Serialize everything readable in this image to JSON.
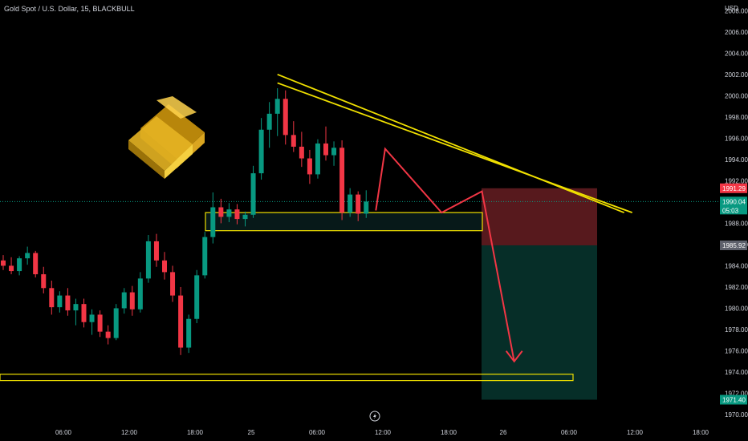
{
  "header": {
    "title": "Gold Spot / U.S. Dollar, 15, BLACKBULL"
  },
  "chart_data": {
    "type": "candlestick",
    "currency_label": "USD",
    "y_ticks": [
      "2008.00",
      "2006.00",
      "2004.00",
      "2002.00",
      "2000.00",
      "1998.00",
      "1996.00",
      "1994.00",
      "1992.00",
      "1988.00",
      "1986.00",
      "1984.00",
      "1982.00",
      "1980.00",
      "1978.00",
      "1976.00",
      "1974.00",
      "1972.00",
      "1970.00"
    ],
    "x_ticks": [
      "06:00",
      "12:00",
      "18:00",
      "25",
      "06:00",
      "12:00",
      "18:00",
      "26",
      "06:00",
      "12:00",
      "18:00"
    ],
    "price_labels": [
      {
        "value": "1991.29",
        "color": "#f23645"
      },
      {
        "value": "1990.04",
        "sub": "05:03",
        "color": "#089981"
      },
      {
        "value": "1985.92",
        "color": "#5d606b"
      },
      {
        "value": "1971.40",
        "color": "#089981"
      }
    ],
    "current_price": 1990.04,
    "trade": {
      "entry": 1985.92,
      "stop": 1991.29,
      "target": 1971.4
    },
    "zones": [
      {
        "low": 1987.3,
        "high": 1989.0
      },
      {
        "low": 1973.2,
        "high": 1973.8
      }
    ],
    "trendlines": [
      {
        "from": [
          34,
          2002.0
        ],
        "to": [
          73,
          1989.0
        ]
      },
      {
        "from": [
          34,
          2001.2
        ],
        "to": [
          74,
          1989.0
        ]
      }
    ],
    "projection_path": [
      [
        58,
        1995.0
      ],
      [
        65,
        1989.0
      ],
      [
        70,
        1991.0
      ],
      [
        74,
        1975.0
      ]
    ],
    "ohlc": [
      [
        0,
        1984.5,
        1985.0,
        1983.6,
        1984.0
      ],
      [
        1,
        1984.0,
        1984.8,
        1983.2,
        1983.5
      ],
      [
        2,
        1983.5,
        1984.9,
        1983.1,
        1984.7
      ],
      [
        3,
        1984.7,
        1985.8,
        1984.1,
        1985.2
      ],
      [
        4,
        1985.2,
        1985.4,
        1982.9,
        1983.2
      ],
      [
        5,
        1983.2,
        1983.9,
        1981.4,
        1981.9
      ],
      [
        6,
        1981.9,
        1982.6,
        1979.4,
        1980.1
      ],
      [
        7,
        1980.1,
        1981.6,
        1979.6,
        1981.2
      ],
      [
        8,
        1981.2,
        1981.9,
        1979.3,
        1979.8
      ],
      [
        9,
        1979.8,
        1980.9,
        1978.4,
        1980.4
      ],
      [
        10,
        1980.4,
        1980.9,
        1978.2,
        1978.7
      ],
      [
        11,
        1978.7,
        1979.9,
        1977.5,
        1979.4
      ],
      [
        12,
        1979.4,
        1979.8,
        1977.3,
        1977.8
      ],
      [
        13,
        1977.8,
        1978.4,
        1976.6,
        1977.2
      ],
      [
        14,
        1977.2,
        1980.4,
        1977.0,
        1980.0
      ],
      [
        15,
        1980.0,
        1981.9,
        1979.5,
        1981.5
      ],
      [
        16,
        1981.5,
        1982.1,
        1979.3,
        1979.9
      ],
      [
        17,
        1979.9,
        1983.4,
        1979.6,
        1982.8
      ],
      [
        18,
        1982.8,
        1986.9,
        1982.4,
        1986.3
      ],
      [
        19,
        1986.3,
        1987.0,
        1983.9,
        1984.5
      ],
      [
        20,
        1984.5,
        1985.3,
        1982.7,
        1983.4
      ],
      [
        21,
        1983.4,
        1984.0,
        1980.6,
        1981.2
      ],
      [
        22,
        1981.2,
        1982.0,
        1975.6,
        1976.3
      ],
      [
        23,
        1976.3,
        1979.4,
        1975.8,
        1979.0
      ],
      [
        24,
        1979.0,
        1983.6,
        1978.6,
        1983.1
      ],
      [
        25,
        1983.1,
        1987.2,
        1982.8,
        1986.7
      ],
      [
        26,
        1986.7,
        1990.9,
        1986.1,
        1989.5
      ],
      [
        27,
        1989.5,
        1990.3,
        1988.0,
        1988.6
      ],
      [
        28,
        1988.6,
        1989.9,
        1988.1,
        1989.3
      ],
      [
        29,
        1989.3,
        1989.8,
        1987.9,
        1988.4
      ],
      [
        30,
        1988.4,
        1989.1,
        1987.7,
        1988.8
      ],
      [
        31,
        1988.8,
        1993.4,
        1988.5,
        1992.7
      ],
      [
        32,
        1992.7,
        1997.9,
        1992.1,
        1996.8
      ],
      [
        33,
        1996.8,
        1999.4,
        1995.1,
        1998.3
      ],
      [
        34,
        1998.3,
        2000.7,
        1996.2,
        1999.7
      ],
      [
        35,
        1999.7,
        2000.5,
        1995.4,
        1996.3
      ],
      [
        36,
        1996.3,
        1997.6,
        1994.7,
        1995.2
      ],
      [
        37,
        1995.2,
        1996.6,
        1993.3,
        1994.1
      ],
      [
        38,
        1994.1,
        1994.9,
        1991.7,
        1992.6
      ],
      [
        39,
        1992.6,
        1995.9,
        1992.2,
        1995.5
      ],
      [
        40,
        1995.5,
        1997.1,
        1993.9,
        1994.4
      ],
      [
        41,
        1994.4,
        1995.7,
        1993.4,
        1995.1
      ],
      [
        42,
        1995.1,
        1995.8,
        1988.3,
        1989.0
      ],
      [
        43,
        1989.0,
        1991.3,
        1988.6,
        1990.7
      ],
      [
        44,
        1990.7,
        1991.0,
        1988.2,
        1988.9
      ],
      [
        45,
        1988.9,
        1991.1,
        1988.5,
        1990.04
      ]
    ],
    "x_range": [
      0,
      76
    ],
    "y_range": [
      1969.4,
      2009.0
    ]
  }
}
